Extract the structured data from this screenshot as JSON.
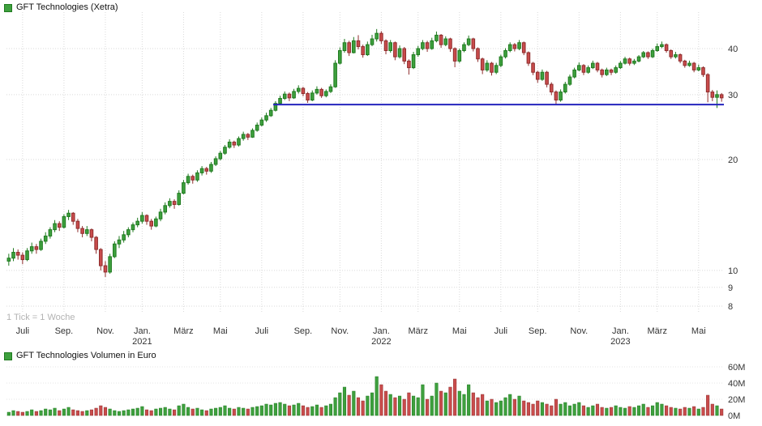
{
  "colors": {
    "up": "#3ea03e",
    "up_border": "#1f7a1f",
    "down": "#c94c4c",
    "down_border": "#8f2d2d",
    "line": "#2424bd",
    "grid": "#d9d9d9",
    "axis_text": "#333333"
  },
  "chart_data": {
    "type": "candlestick",
    "title": "GFT Technologies (Xetra)",
    "volume_title": "GFT Technologies Volumen in Euro",
    "tick_note": "1 Tick = 1 Woche",
    "interval": "weekly",
    "y_scale": "log",
    "ylabel": "",
    "xlabel": "",
    "y_ticks": [
      8,
      9,
      10,
      20,
      30,
      40
    ],
    "support_line": {
      "value": 28.2,
      "start_week": 58
    },
    "volume_axis": {
      "ticks": [
        "60M",
        "40M",
        "20M",
        "0M"
      ],
      "values": [
        60,
        40,
        20,
        0
      ],
      "unit": "M EUR"
    },
    "x_ticks": [
      {
        "label": "Juli",
        "week": 3
      },
      {
        "label": "Sep.",
        "week": 12
      },
      {
        "label": "Nov.",
        "week": 21
      },
      {
        "label": "Jan.",
        "week": 29,
        "year": "2021"
      },
      {
        "label": "März",
        "week": 38
      },
      {
        "label": "Mai",
        "week": 46
      },
      {
        "label": "Juli",
        "week": 55
      },
      {
        "label": "Sep.",
        "week": 64
      },
      {
        "label": "Nov.",
        "week": 72
      },
      {
        "label": "Jan.",
        "week": 81,
        "year": "2022"
      },
      {
        "label": "März",
        "week": 89
      },
      {
        "label": "Mai",
        "week": 98
      },
      {
        "label": "Juli",
        "week": 107
      },
      {
        "label": "Sep.",
        "week": 115
      },
      {
        "label": "Nov.",
        "week": 124
      },
      {
        "label": "Jan.",
        "week": 133,
        "year": "2023"
      },
      {
        "label": "März",
        "week": 141
      },
      {
        "label": "Mai",
        "week": 150
      }
    ],
    "ohlcv": [
      [
        10.6,
        11.1,
        10.3,
        10.8,
        4
      ],
      [
        10.8,
        11.5,
        10.6,
        11.2,
        6
      ],
      [
        11.2,
        11.4,
        10.7,
        11.0,
        5
      ],
      [
        11.0,
        11.2,
        10.4,
        10.7,
        4
      ],
      [
        10.7,
        11.5,
        10.6,
        11.3,
        5
      ],
      [
        11.3,
        11.9,
        11.1,
        11.6,
        7
      ],
      [
        11.6,
        11.8,
        11.1,
        11.4,
        5
      ],
      [
        11.4,
        12.2,
        11.3,
        12.0,
        6
      ],
      [
        12.0,
        12.7,
        11.8,
        12.4,
        8
      ],
      [
        12.4,
        13.1,
        12.2,
        12.9,
        7
      ],
      [
        12.9,
        13.7,
        12.7,
        13.4,
        9
      ],
      [
        13.4,
        13.6,
        12.8,
        13.1,
        6
      ],
      [
        13.1,
        14.2,
        13.0,
        14.0,
        8
      ],
      [
        14.0,
        14.6,
        13.7,
        14.3,
        10
      ],
      [
        14.3,
        14.4,
        13.3,
        13.6,
        7
      ],
      [
        13.6,
        13.8,
        12.7,
        13.0,
        6
      ],
      [
        13.0,
        13.2,
        12.3,
        12.6,
        5
      ],
      [
        12.6,
        13.2,
        12.4,
        12.9,
        6
      ],
      [
        12.9,
        13.0,
        12.0,
        12.3,
        7
      ],
      [
        12.3,
        12.4,
        11.1,
        11.4,
        9
      ],
      [
        11.4,
        11.5,
        10.0,
        10.3,
        12
      ],
      [
        10.3,
        10.6,
        9.6,
        9.9,
        10
      ],
      [
        9.9,
        11.1,
        9.8,
        10.9,
        8
      ],
      [
        10.9,
        12.0,
        10.8,
        11.8,
        6
      ],
      [
        11.8,
        12.4,
        11.5,
        12.1,
        5
      ],
      [
        12.1,
        12.8,
        11.9,
        12.5,
        6
      ],
      [
        12.5,
        13.1,
        12.3,
        12.9,
        7
      ],
      [
        12.9,
        13.5,
        12.7,
        13.3,
        8
      ],
      [
        13.3,
        13.9,
        13.1,
        13.6,
        9
      ],
      [
        13.6,
        14.4,
        13.4,
        14.1,
        11
      ],
      [
        14.1,
        14.2,
        13.3,
        13.6,
        7
      ],
      [
        13.6,
        13.8,
        12.9,
        13.2,
        6
      ],
      [
        13.2,
        14.0,
        13.1,
        13.8,
        8
      ],
      [
        13.8,
        14.7,
        13.6,
        14.4,
        9
      ],
      [
        14.4,
        15.3,
        14.2,
        15.0,
        10
      ],
      [
        15.0,
        15.7,
        14.8,
        15.4,
        8
      ],
      [
        15.4,
        15.6,
        14.7,
        15.1,
        7
      ],
      [
        15.1,
        16.5,
        15.0,
        16.2,
        12
      ],
      [
        16.2,
        17.6,
        16.1,
        17.3,
        14
      ],
      [
        17.3,
        18.3,
        17.1,
        18.0,
        10
      ],
      [
        18.0,
        18.2,
        17.2,
        17.6,
        8
      ],
      [
        17.6,
        18.7,
        17.4,
        18.4,
        9
      ],
      [
        18.4,
        19.2,
        18.1,
        18.9,
        7
      ],
      [
        18.9,
        19.1,
        18.2,
        18.6,
        6
      ],
      [
        18.6,
        19.7,
        18.4,
        19.4,
        8
      ],
      [
        19.4,
        20.4,
        19.2,
        20.1,
        9
      ],
      [
        20.1,
        21.1,
        19.9,
        20.8,
        10
      ],
      [
        20.8,
        21.9,
        20.6,
        21.6,
        12
      ],
      [
        21.6,
        22.7,
        21.4,
        22.3,
        9
      ],
      [
        22.3,
        22.5,
        21.5,
        21.9,
        8
      ],
      [
        21.9,
        23.1,
        21.7,
        22.8,
        10
      ],
      [
        22.8,
        23.8,
        22.5,
        23.4,
        9
      ],
      [
        23.4,
        23.6,
        22.6,
        23.0,
        8
      ],
      [
        23.0,
        24.3,
        22.9,
        24.0,
        10
      ],
      [
        24.0,
        25.2,
        23.8,
        24.8,
        11
      ],
      [
        24.8,
        26.0,
        24.6,
        25.6,
        12
      ],
      [
        25.6,
        26.8,
        25.3,
        26.3,
        14
      ],
      [
        26.3,
        27.6,
        26.1,
        27.2,
        13
      ],
      [
        27.2,
        28.8,
        27.0,
        28.4,
        15
      ],
      [
        28.4,
        29.8,
        28.1,
        29.3,
        16
      ],
      [
        29.3,
        30.6,
        29.0,
        30.1,
        14
      ],
      [
        30.1,
        30.4,
        28.8,
        29.4,
        12
      ],
      [
        29.4,
        31.1,
        29.2,
        30.6,
        13
      ],
      [
        30.6,
        31.8,
        30.2,
        31.2,
        15
      ],
      [
        31.2,
        31.5,
        29.7,
        30.2,
        12
      ],
      [
        30.2,
        30.5,
        28.5,
        29.0,
        10
      ],
      [
        29.0,
        30.8,
        28.8,
        30.3,
        11
      ],
      [
        30.3,
        31.6,
        30.0,
        31.0,
        13
      ],
      [
        31.0,
        31.3,
        29.4,
        29.8,
        10
      ],
      [
        29.8,
        31.0,
        29.5,
        30.6,
        12
      ],
      [
        30.6,
        32.0,
        30.3,
        31.5,
        14
      ],
      [
        31.5,
        37.2,
        31.3,
        36.5,
        22
      ],
      [
        36.5,
        40.3,
        36.2,
        39.5,
        28
      ],
      [
        39.5,
        42.5,
        39.0,
        41.5,
        35
      ],
      [
        41.5,
        42.0,
        38.2,
        39.0,
        25
      ],
      [
        39.0,
        43.0,
        38.8,
        42.0,
        30
      ],
      [
        42.0,
        43.5,
        39.8,
        40.5,
        22
      ],
      [
        40.5,
        41.0,
        37.8,
        38.5,
        18
      ],
      [
        38.5,
        41.8,
        38.2,
        41.0,
        24
      ],
      [
        41.0,
        43.6,
        40.6,
        42.5,
        28
      ],
      [
        42.5,
        45.2,
        41.8,
        44.0,
        48
      ],
      [
        44.0,
        44.6,
        41.2,
        42.0,
        38
      ],
      [
        42.0,
        42.4,
        38.6,
        39.5,
        30
      ],
      [
        39.5,
        42.2,
        39.0,
        41.5,
        26
      ],
      [
        41.5,
        41.8,
        37.2,
        38.0,
        22
      ],
      [
        38.0,
        40.8,
        37.6,
        40.0,
        24
      ],
      [
        40.0,
        40.4,
        36.3,
        37.0,
        20
      ],
      [
        37.0,
        37.4,
        34.0,
        35.5,
        28
      ],
      [
        35.5,
        39.2,
        35.2,
        38.5,
        24
      ],
      [
        38.5,
        40.7,
        38.0,
        40.0,
        22
      ],
      [
        40.0,
        42.2,
        39.6,
        41.5,
        38
      ],
      [
        41.5,
        42.0,
        39.2,
        40.0,
        20
      ],
      [
        40.0,
        42.8,
        39.7,
        42.0,
        24
      ],
      [
        42.0,
        44.5,
        41.6,
        43.5,
        40
      ],
      [
        43.5,
        43.8,
        40.2,
        41.0,
        30
      ],
      [
        41.0,
        43.2,
        40.6,
        42.5,
        28
      ],
      [
        42.5,
        42.8,
        39.2,
        40.0,
        35
      ],
      [
        40.0,
        40.3,
        35.6,
        37.0,
        45
      ],
      [
        37.0,
        40.0,
        36.6,
        39.5,
        30
      ],
      [
        39.5,
        41.6,
        39.1,
        41.0,
        26
      ],
      [
        41.0,
        43.4,
        40.6,
        42.5,
        38
      ],
      [
        42.5,
        42.8,
        39.3,
        40.0,
        28
      ],
      [
        40.0,
        40.3,
        36.8,
        37.5,
        22
      ],
      [
        37.5,
        37.8,
        34.1,
        35.0,
        26
      ],
      [
        35.0,
        37.2,
        34.6,
        36.5,
        18
      ],
      [
        36.5,
        36.8,
        33.8,
        34.5,
        20
      ],
      [
        34.5,
        36.6,
        34.1,
        36.0,
        16
      ],
      [
        36.0,
        38.5,
        35.6,
        38.0,
        18
      ],
      [
        38.0,
        40.1,
        37.6,
        39.5,
        22
      ],
      [
        39.5,
        41.6,
        39.1,
        41.0,
        26
      ],
      [
        41.0,
        41.4,
        39.3,
        40.0,
        20
      ],
      [
        40.0,
        42.2,
        39.6,
        41.5,
        24
      ],
      [
        41.5,
        41.8,
        38.4,
        39.0,
        18
      ],
      [
        39.0,
        39.3,
        35.9,
        36.5,
        16
      ],
      [
        36.5,
        36.8,
        33.9,
        34.5,
        14
      ],
      [
        34.5,
        34.8,
        32.3,
        33.0,
        18
      ],
      [
        33.0,
        35.1,
        32.7,
        34.5,
        16
      ],
      [
        34.5,
        34.8,
        31.4,
        32.0,
        14
      ],
      [
        32.0,
        32.4,
        29.9,
        30.5,
        12
      ],
      [
        30.5,
        30.8,
        28.2,
        29.0,
        20
      ],
      [
        29.0,
        31.0,
        28.7,
        30.5,
        14
      ],
      [
        30.5,
        32.5,
        30.2,
        32.0,
        16
      ],
      [
        32.0,
        34.0,
        31.7,
        33.5,
        12
      ],
      [
        33.5,
        35.5,
        33.2,
        35.0,
        14
      ],
      [
        35.0,
        36.7,
        34.7,
        36.0,
        16
      ],
      [
        36.0,
        36.3,
        33.9,
        34.5,
        12
      ],
      [
        34.5,
        36.0,
        34.2,
        35.5,
        10
      ],
      [
        35.5,
        37.1,
        35.2,
        36.5,
        12
      ],
      [
        36.5,
        36.8,
        34.5,
        35.0,
        14
      ],
      [
        35.0,
        35.3,
        33.4,
        34.0,
        10
      ],
      [
        34.0,
        35.5,
        33.7,
        35.0,
        9
      ],
      [
        35.0,
        35.3,
        33.9,
        34.5,
        10
      ],
      [
        34.5,
        36.0,
        34.2,
        35.5,
        12
      ],
      [
        35.5,
        37.0,
        35.2,
        36.5,
        10
      ],
      [
        36.5,
        38.0,
        36.2,
        37.5,
        9
      ],
      [
        37.5,
        37.8,
        36.0,
        36.5,
        11
      ],
      [
        36.5,
        37.5,
        36.1,
        37.0,
        10
      ],
      [
        37.0,
        38.4,
        36.7,
        38.0,
        12
      ],
      [
        38.0,
        39.4,
        37.7,
        39.0,
        14
      ],
      [
        39.0,
        39.3,
        37.5,
        38.0,
        10
      ],
      [
        38.0,
        40.0,
        37.7,
        39.5,
        12
      ],
      [
        39.5,
        41.3,
        39.2,
        40.5,
        16
      ],
      [
        40.5,
        41.8,
        40.1,
        41.0,
        14
      ],
      [
        41.0,
        41.3,
        39.0,
        39.5,
        12
      ],
      [
        39.5,
        39.8,
        37.5,
        38.0,
        10
      ],
      [
        38.0,
        39.2,
        37.6,
        38.5,
        9
      ],
      [
        38.5,
        38.8,
        36.5,
        37.0,
        8
      ],
      [
        37.0,
        37.3,
        35.5,
        36.0,
        10
      ],
      [
        36.0,
        37.1,
        35.7,
        36.5,
        9
      ],
      [
        36.5,
        36.8,
        34.5,
        35.0,
        11
      ],
      [
        35.0,
        36.2,
        34.7,
        35.5,
        8
      ],
      [
        35.5,
        35.8,
        33.5,
        34.0,
        10
      ],
      [
        34.0,
        34.3,
        28.6,
        30.5,
        25
      ],
      [
        30.5,
        30.9,
        28.8,
        29.5,
        14
      ],
      [
        29.5,
        30.8,
        27.6,
        30.0,
        12
      ],
      [
        30.0,
        30.3,
        28.7,
        29.4,
        8
      ]
    ]
  }
}
